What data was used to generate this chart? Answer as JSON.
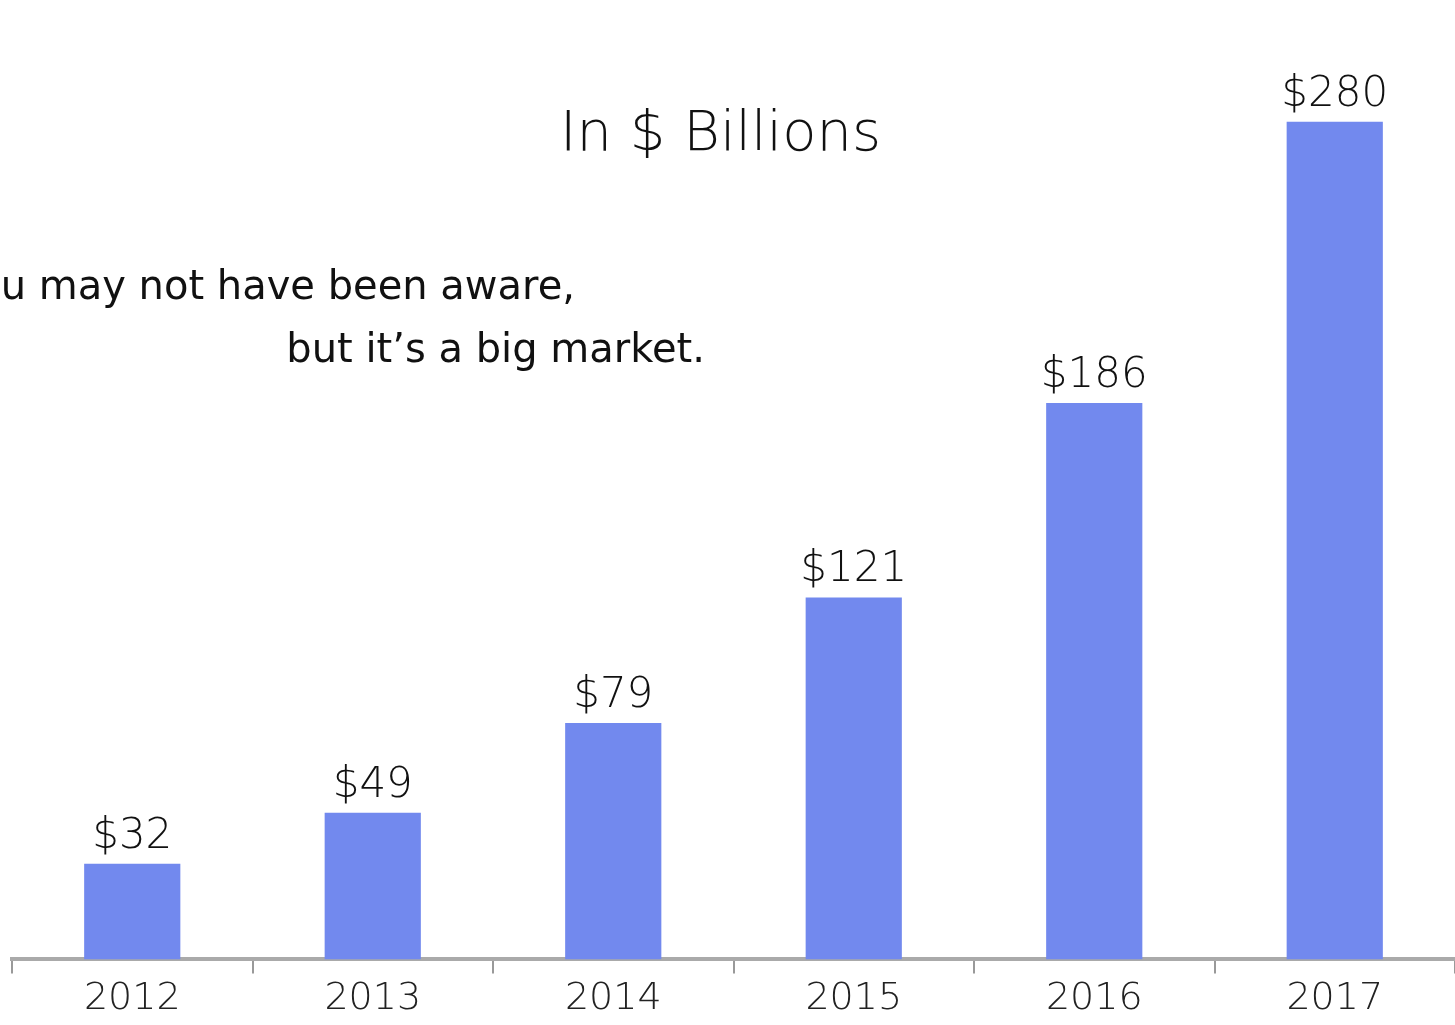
{
  "chart_data": {
    "type": "bar",
    "title": "In $ Billions",
    "categories": [
      "2012",
      "2013",
      "2014",
      "2015",
      "2016",
      "2017"
    ],
    "values": [
      32,
      49,
      79,
      121,
      186,
      280
    ],
    "value_labels": [
      "$32",
      "$49",
      "$79",
      "$121",
      "$186",
      "$280"
    ],
    "color": "#7289ee",
    "annotations": [
      "u may not have been aware,",
      "but it’s a big market."
    ]
  }
}
